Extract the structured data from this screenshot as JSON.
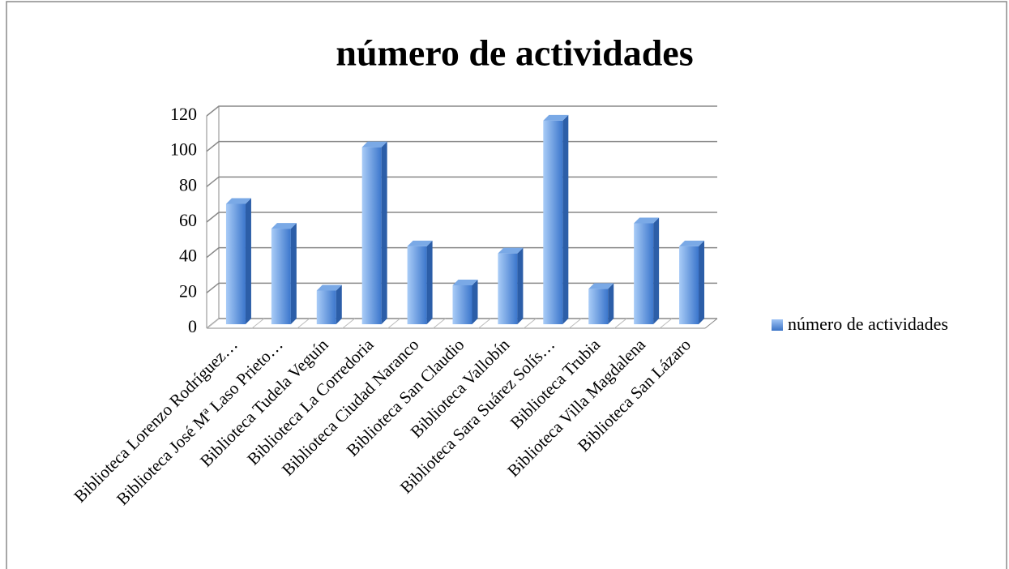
{
  "chart_data": {
    "type": "bar",
    "title": "número de actividades",
    "categories": [
      "Biblioteca Lorenzo Rodríguez…",
      "Biblioteca José Mª Laso Prieto…",
      "Biblioteca Tudela Veguín",
      "Biblioteca La Corredoria",
      "Biblioteca Ciudad Naranco",
      "Biblioteca San Claudio",
      "Biblioteca Vallobín",
      "Biblioteca Sara Suárez Solís…",
      "Biblioteca Trubia",
      "Biblioteca Villa Magdalena",
      "Biblioteca San Lázaro"
    ],
    "series": [
      {
        "name": "número de actividades",
        "color": "#4a86d8",
        "values": [
          68,
          54,
          19,
          100,
          44,
          22,
          40,
          115,
          20,
          57,
          44
        ]
      }
    ],
    "ylim": [
      0,
      120
    ],
    "yticks": [
      0,
      20,
      40,
      60,
      80,
      100,
      120
    ],
    "grid": true,
    "legend": "right"
  }
}
